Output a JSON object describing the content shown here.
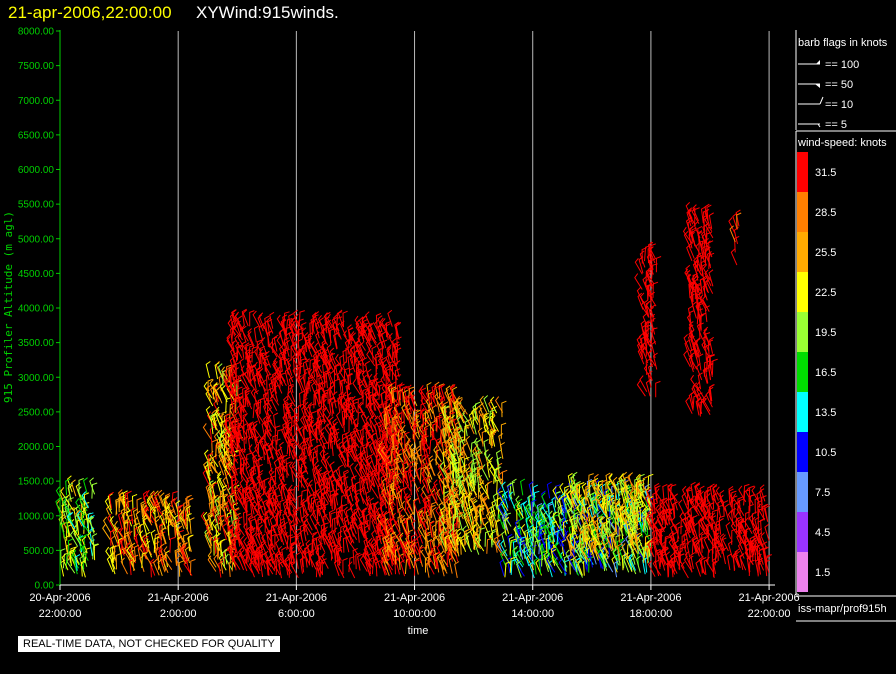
{
  "header": {
    "date_text": "21-apr-2006,22:00:00",
    "product_text": "XYWind:915winds."
  },
  "footer": {
    "quality_note": "REAL-TIME DATA, NOT CHECKED FOR QUALITY"
  },
  "chart_data": {
    "type": "scatter",
    "ylabel": "915 Profiler Altitude (m agl)",
    "xlabel": "time",
    "yticks": [
      "0.00",
      "500.00",
      "1000.00",
      "1500.00",
      "2000.00",
      "2500.00",
      "3000.00",
      "3500.00",
      "4000.00",
      "4500.00",
      "5000.00",
      "5500.00",
      "6000.00",
      "6500.00",
      "7000.00",
      "7500.00",
      "8000.00"
    ],
    "ylim": [
      0,
      8000
    ],
    "xticks": [
      {
        "line1": "20-Apr-2006",
        "line2": "22:00:00",
        "hours": 0
      },
      {
        "line1": "21-Apr-2006",
        "line2": "2:00:00",
        "hours": 4
      },
      {
        "line1": "21-Apr-2006",
        "line2": "6:00:00",
        "hours": 8
      },
      {
        "line1": "21-Apr-2006",
        "line2": "10:00:00",
        "hours": 12
      },
      {
        "line1": "21-Apr-2006",
        "line2": "14:00:00",
        "hours": 16
      },
      {
        "line1": "21-Apr-2006",
        "line2": "18:00:00",
        "hours": 20
      },
      {
        "line1": "21-Apr-2006",
        "line2": "22:00:00",
        "hours": 24
      }
    ],
    "xlim_hours": [
      0,
      24.2
    ],
    "grid": "vertical lines at x ticks",
    "barb_legend": {
      "title": "barb flags in knots",
      "entries": [
        {
          "label": "== 100",
          "kind": "pennant"
        },
        {
          "label": "== 50",
          "kind": "triangle"
        },
        {
          "label": "== 10",
          "kind": "full"
        },
        {
          "label": "== 5",
          "kind": "half"
        }
      ]
    },
    "colorbar": {
      "title": "wind-speed: knots",
      "bins": [
        {
          "label": "31.5",
          "color": "#ff0000"
        },
        {
          "label": "28.5",
          "color": "#ff7f00"
        },
        {
          "label": "25.5",
          "color": "#ffaa00"
        },
        {
          "label": "22.5",
          "color": "#ffff00"
        },
        {
          "label": "19.5",
          "color": "#99ff33"
        },
        {
          "label": "16.5",
          "color": "#00dd00"
        },
        {
          "label": "13.5",
          "color": "#00ffff"
        },
        {
          "label": "10.5",
          "color": "#0000ff"
        },
        {
          "label": "7.5",
          "color": "#6699ff"
        },
        {
          "label": "4.5",
          "color": "#9933ff"
        },
        {
          "label": "1.5",
          "color": "#ee82ee"
        }
      ]
    },
    "source_label": "iss-mapr/prof915h",
    "wind_regions": [
      {
        "t0": 0.0,
        "t1": 1.2,
        "h0": 100,
        "h1": 1350,
        "speed": 20,
        "spread": 6
      },
      {
        "t0": 1.7,
        "t1": 4.5,
        "h0": 100,
        "h1": 1150,
        "speed": 27,
        "spread": 5
      },
      {
        "t0": 5.0,
        "t1": 6.0,
        "h0": 100,
        "h1": 3000,
        "speed": 26,
        "spread": 6
      },
      {
        "t0": 5.8,
        "t1": 11.5,
        "h0": 100,
        "h1": 3750,
        "speed": 33,
        "spread": 3
      },
      {
        "t0": 11.0,
        "t1": 13.5,
        "h0": 100,
        "h1": 2700,
        "speed": 30,
        "spread": 5
      },
      {
        "t0": 13.0,
        "t1": 15.0,
        "h0": 400,
        "h1": 2500,
        "speed": 24,
        "spread": 6
      },
      {
        "t0": 15.0,
        "t1": 20.0,
        "h0": 100,
        "h1": 1300,
        "speed": 16,
        "spread": 8
      },
      {
        "t0": 17.3,
        "t1": 20.0,
        "h0": 300,
        "h1": 1400,
        "speed": 23,
        "spread": 5
      },
      {
        "t0": 20.0,
        "t1": 24.0,
        "h0": 100,
        "h1": 1250,
        "speed": 33,
        "spread": 3
      },
      {
        "t0": 19.7,
        "t1": 20.2,
        "h0": 2700,
        "h1": 4800,
        "speed": 33,
        "spread": 2
      },
      {
        "t0": 21.3,
        "t1": 22.1,
        "h0": 2400,
        "h1": 5300,
        "speed": 33,
        "spread": 2
      },
      {
        "t0": 22.8,
        "t1": 23.0,
        "h0": 4600,
        "h1": 5200,
        "speed": 31,
        "spread": 2
      }
    ]
  }
}
